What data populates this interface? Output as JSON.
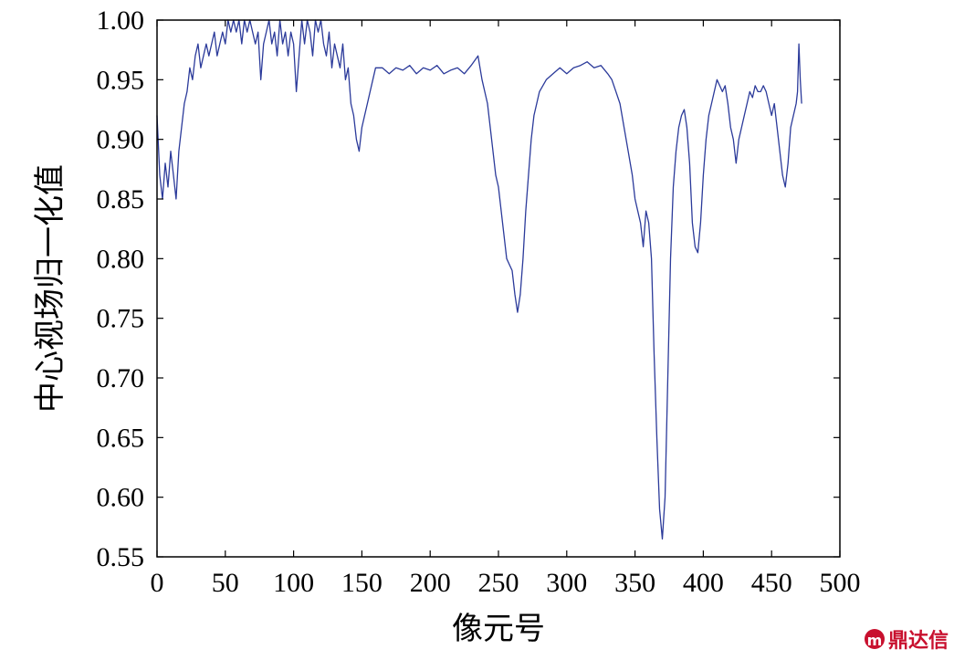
{
  "chart_data": {
    "type": "line",
    "title": "",
    "xlabel": "像元号",
    "ylabel": "中心视场归一化值",
    "xlim": [
      0,
      500
    ],
    "ylim": [
      0.55,
      1.0
    ],
    "x_ticks": [
      "0",
      "50",
      "100",
      "150",
      "200",
      "250",
      "300",
      "350",
      "400",
      "450",
      "500"
    ],
    "y_ticks": [
      "0.55",
      "0.60",
      "0.65",
      "0.70",
      "0.75",
      "0.80",
      "0.85",
      "0.90",
      "0.95",
      "1.00"
    ],
    "grid": false,
    "legend": "none",
    "series": [
      {
        "color": "#2b3a9a",
        "points": [
          [
            0,
            0.92
          ],
          [
            2,
            0.87
          ],
          [
            4,
            0.85
          ],
          [
            6,
            0.88
          ],
          [
            8,
            0.86
          ],
          [
            10,
            0.89
          ],
          [
            12,
            0.87
          ],
          [
            14,
            0.85
          ],
          [
            16,
            0.89
          ],
          [
            18,
            0.91
          ],
          [
            20,
            0.93
          ],
          [
            22,
            0.94
          ],
          [
            24,
            0.96
          ],
          [
            26,
            0.95
          ],
          [
            28,
            0.97
          ],
          [
            30,
            0.98
          ],
          [
            32,
            0.96
          ],
          [
            34,
            0.97
          ],
          [
            36,
            0.98
          ],
          [
            38,
            0.97
          ],
          [
            40,
            0.98
          ],
          [
            42,
            0.99
          ],
          [
            44,
            0.97
          ],
          [
            46,
            0.98
          ],
          [
            48,
            0.99
          ],
          [
            50,
            0.98
          ],
          [
            52,
            1.0
          ],
          [
            54,
            0.99
          ],
          [
            56,
            1.0
          ],
          [
            58,
            0.99
          ],
          [
            60,
            1.0
          ],
          [
            62,
            0.98
          ],
          [
            64,
            1.0
          ],
          [
            66,
            0.99
          ],
          [
            68,
            1.0
          ],
          [
            70,
            0.99
          ],
          [
            72,
            0.98
          ],
          [
            74,
            0.99
          ],
          [
            76,
            0.95
          ],
          [
            78,
            0.98
          ],
          [
            80,
            0.99
          ],
          [
            82,
            1.0
          ],
          [
            84,
            0.98
          ],
          [
            86,
            0.99
          ],
          [
            88,
            0.97
          ],
          [
            90,
            1.0
          ],
          [
            92,
            0.98
          ],
          [
            94,
            0.99
          ],
          [
            96,
            0.97
          ],
          [
            98,
            0.99
          ],
          [
            100,
            0.98
          ],
          [
            102,
            0.94
          ],
          [
            104,
            0.97
          ],
          [
            106,
            1.0
          ],
          [
            108,
            0.98
          ],
          [
            110,
            1.0
          ],
          [
            112,
            0.99
          ],
          [
            114,
            0.97
          ],
          [
            116,
            1.0
          ],
          [
            118,
            0.99
          ],
          [
            120,
            1.0
          ],
          [
            122,
            0.98
          ],
          [
            124,
            0.97
          ],
          [
            126,
            0.99
          ],
          [
            128,
            0.96
          ],
          [
            130,
            0.98
          ],
          [
            132,
            0.97
          ],
          [
            134,
            0.96
          ],
          [
            136,
            0.98
          ],
          [
            138,
            0.95
          ],
          [
            140,
            0.96
          ],
          [
            142,
            0.93
          ],
          [
            144,
            0.92
          ],
          [
            146,
            0.9
          ],
          [
            148,
            0.89
          ],
          [
            150,
            0.91
          ],
          [
            152,
            0.92
          ],
          [
            154,
            0.93
          ],
          [
            156,
            0.94
          ],
          [
            158,
            0.95
          ],
          [
            160,
            0.96
          ],
          [
            165,
            0.96
          ],
          [
            170,
            0.955
          ],
          [
            175,
            0.96
          ],
          [
            180,
            0.958
          ],
          [
            185,
            0.962
          ],
          [
            190,
            0.955
          ],
          [
            195,
            0.96
          ],
          [
            200,
            0.958
          ],
          [
            205,
            0.962
          ],
          [
            210,
            0.955
          ],
          [
            215,
            0.958
          ],
          [
            220,
            0.96
          ],
          [
            225,
            0.955
          ],
          [
            230,
            0.962
          ],
          [
            235,
            0.97
          ],
          [
            238,
            0.95
          ],
          [
            240,
            0.94
          ],
          [
            242,
            0.93
          ],
          [
            244,
            0.91
          ],
          [
            246,
            0.89
          ],
          [
            248,
            0.87
          ],
          [
            250,
            0.86
          ],
          [
            252,
            0.84
          ],
          [
            254,
            0.82
          ],
          [
            256,
            0.8
          ],
          [
            258,
            0.795
          ],
          [
            260,
            0.79
          ],
          [
            262,
            0.77
          ],
          [
            264,
            0.755
          ],
          [
            266,
            0.77
          ],
          [
            268,
            0.8
          ],
          [
            270,
            0.84
          ],
          [
            272,
            0.87
          ],
          [
            274,
            0.9
          ],
          [
            276,
            0.92
          ],
          [
            278,
            0.93
          ],
          [
            280,
            0.94
          ],
          [
            285,
            0.95
          ],
          [
            290,
            0.955
          ],
          [
            295,
            0.96
          ],
          [
            300,
            0.955
          ],
          [
            305,
            0.96
          ],
          [
            310,
            0.962
          ],
          [
            315,
            0.965
          ],
          [
            320,
            0.96
          ],
          [
            325,
            0.962
          ],
          [
            330,
            0.955
          ],
          [
            333,
            0.95
          ],
          [
            336,
            0.94
          ],
          [
            339,
            0.93
          ],
          [
            342,
            0.91
          ],
          [
            345,
            0.89
          ],
          [
            348,
            0.87
          ],
          [
            350,
            0.85
          ],
          [
            352,
            0.84
          ],
          [
            354,
            0.83
          ],
          [
            356,
            0.81
          ],
          [
            358,
            0.84
          ],
          [
            360,
            0.83
          ],
          [
            362,
            0.8
          ],
          [
            364,
            0.72
          ],
          [
            366,
            0.65
          ],
          [
            368,
            0.59
          ],
          [
            370,
            0.565
          ],
          [
            372,
            0.6
          ],
          [
            374,
            0.7
          ],
          [
            376,
            0.8
          ],
          [
            378,
            0.86
          ],
          [
            380,
            0.89
          ],
          [
            382,
            0.91
          ],
          [
            384,
            0.92
          ],
          [
            386,
            0.925
          ],
          [
            388,
            0.91
          ],
          [
            390,
            0.88
          ],
          [
            392,
            0.83
          ],
          [
            394,
            0.81
          ],
          [
            396,
            0.805
          ],
          [
            398,
            0.83
          ],
          [
            400,
            0.87
          ],
          [
            402,
            0.9
          ],
          [
            404,
            0.92
          ],
          [
            406,
            0.93
          ],
          [
            408,
            0.94
          ],
          [
            410,
            0.95
          ],
          [
            412,
            0.945
          ],
          [
            414,
            0.94
          ],
          [
            416,
            0.945
          ],
          [
            418,
            0.93
          ],
          [
            420,
            0.91
          ],
          [
            422,
            0.9
          ],
          [
            424,
            0.88
          ],
          [
            426,
            0.9
          ],
          [
            428,
            0.91
          ],
          [
            430,
            0.92
          ],
          [
            432,
            0.93
          ],
          [
            434,
            0.94
          ],
          [
            436,
            0.935
          ],
          [
            438,
            0.945
          ],
          [
            440,
            0.94
          ],
          [
            442,
            0.94
          ],
          [
            444,
            0.945
          ],
          [
            446,
            0.94
          ],
          [
            448,
            0.93
          ],
          [
            450,
            0.92
          ],
          [
            452,
            0.93
          ],
          [
            454,
            0.91
          ],
          [
            456,
            0.89
          ],
          [
            458,
            0.87
          ],
          [
            460,
            0.86
          ],
          [
            462,
            0.88
          ],
          [
            464,
            0.91
          ],
          [
            466,
            0.92
          ],
          [
            468,
            0.93
          ],
          [
            469,
            0.94
          ],
          [
            470,
            0.98
          ],
          [
            471,
            0.95
          ],
          [
            472,
            0.93
          ]
        ]
      }
    ]
  },
  "watermark": {
    "text": "鼎达信",
    "color": "#c8102e"
  }
}
